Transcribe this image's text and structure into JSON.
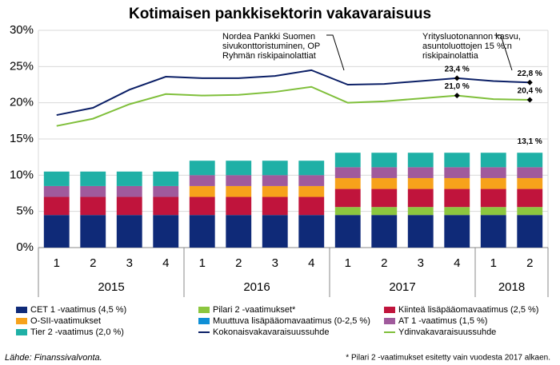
{
  "chart_data": {
    "type": "stacked-bar-line",
    "title": "Kotimaisen pankkisektorin vakavaraisuus",
    "source": "Lähde: Finanssivalvonta.",
    "footnote": "* Pilari 2 -vaatimukset  esitetty vain vuodesta  2017 alkaen.",
    "categories": [
      "1",
      "2",
      "3",
      "4",
      "1",
      "2",
      "3",
      "4",
      "1",
      "2",
      "3",
      "4",
      "1",
      "2"
    ],
    "groups": [
      {
        "label": "2015",
        "size": 4
      },
      {
        "label": "2016",
        "size": 4
      },
      {
        "label": "2017",
        "size": 4
      },
      {
        "label": "2018",
        "size": 2
      }
    ],
    "ylim": [
      0,
      30
    ],
    "yticks": [
      {
        "value": 0,
        "label": "0%"
      },
      {
        "value": 5,
        "label": "5%"
      },
      {
        "value": 10,
        "label": "10%"
      },
      {
        "value": 15,
        "label": "15%"
      },
      {
        "value": 20,
        "label": "20%"
      },
      {
        "value": 25,
        "label": "25%"
      },
      {
        "value": 30,
        "label": "30%"
      }
    ],
    "grid": true,
    "series": [
      {
        "name": "CET 1 -vaatimus (4,5 %)",
        "kind": "bar",
        "color": "#0f2a78",
        "values": [
          4.5,
          4.5,
          4.5,
          4.5,
          4.5,
          4.5,
          4.5,
          4.5,
          4.5,
          4.5,
          4.5,
          4.5,
          4.5,
          4.5
        ]
      },
      {
        "name": "Pilari 2 -vaatimukset*",
        "kind": "bar",
        "color": "#8cc63f",
        "values": [
          0,
          0,
          0,
          0,
          0,
          0,
          0,
          0,
          1.1,
          1.1,
          1.1,
          1.1,
          1.1,
          1.1
        ]
      },
      {
        "name": "Kiinteä lisäpääomavaatimus (2,5 %)",
        "kind": "bar",
        "color": "#c0143c",
        "values": [
          2.5,
          2.5,
          2.5,
          2.5,
          2.5,
          2.5,
          2.5,
          2.5,
          2.5,
          2.5,
          2.5,
          2.5,
          2.5,
          2.5
        ]
      },
      {
        "name": "O-SII-vaatimukset",
        "kind": "bar",
        "color": "#f7a21b",
        "values": [
          0,
          0,
          0,
          0,
          1.5,
          1.5,
          1.5,
          1.5,
          1.5,
          1.5,
          1.5,
          1.5,
          1.5,
          1.5
        ]
      },
      {
        "name": "Muuttuva lisäpääomavaatimus (0-2,5 %)",
        "kind": "bar",
        "color": "#0f8fd6",
        "values": [
          0,
          0,
          0,
          0,
          0,
          0,
          0,
          0,
          0,
          0,
          0,
          0,
          0,
          0
        ]
      },
      {
        "name": "AT 1 -vaatimus (1,5 %)",
        "kind": "bar",
        "color": "#a05a9c",
        "values": [
          1.5,
          1.5,
          1.5,
          1.5,
          1.5,
          1.5,
          1.5,
          1.5,
          1.5,
          1.5,
          1.5,
          1.5,
          1.5,
          1.5
        ]
      },
      {
        "name": "Tier 2 -vaatimus (2,0 %)",
        "kind": "bar",
        "color": "#1fb0a6",
        "values": [
          2,
          2,
          2,
          2,
          2,
          2,
          2,
          2,
          2,
          2,
          2,
          2,
          2,
          2
        ]
      },
      {
        "name": "Kokonaisvakavaraisuussuhde",
        "kind": "line",
        "color": "#0b1f66",
        "values": [
          18.3,
          19.3,
          21.8,
          23.6,
          23.4,
          23.4,
          23.7,
          24.5,
          22.5,
          22.6,
          23.0,
          23.4,
          23.0,
          22.8
        ],
        "value_labels": [
          null,
          null,
          null,
          null,
          null,
          null,
          null,
          null,
          null,
          null,
          null,
          "23,4 %",
          null,
          "22,8 %"
        ]
      },
      {
        "name": "Ydinvakavaraisuussuhde",
        "kind": "line",
        "color": "#7fbf3a",
        "values": [
          16.8,
          17.8,
          19.8,
          21.2,
          21.0,
          21.1,
          21.5,
          22.2,
          20.0,
          20.2,
          20.6,
          21.0,
          20.5,
          20.4
        ],
        "value_labels": [
          null,
          null,
          null,
          null,
          null,
          null,
          null,
          null,
          null,
          null,
          null,
          "21,0 %",
          null,
          "20,4 %"
        ]
      }
    ],
    "bar_total_label": {
      "value": 13.1,
      "label": "13,1 %"
    },
    "annotations": [
      {
        "lines": [
          "Nordea Pankki Suomen",
          "sivukonttoristuminen, OP",
          "Ryhmän riskipainolattiat"
        ]
      },
      {
        "lines": [
          "Yritysluotonannon kasvu,",
          "asuntoluottojen 15 %:n",
          "riskipainolattia"
        ]
      }
    ]
  }
}
